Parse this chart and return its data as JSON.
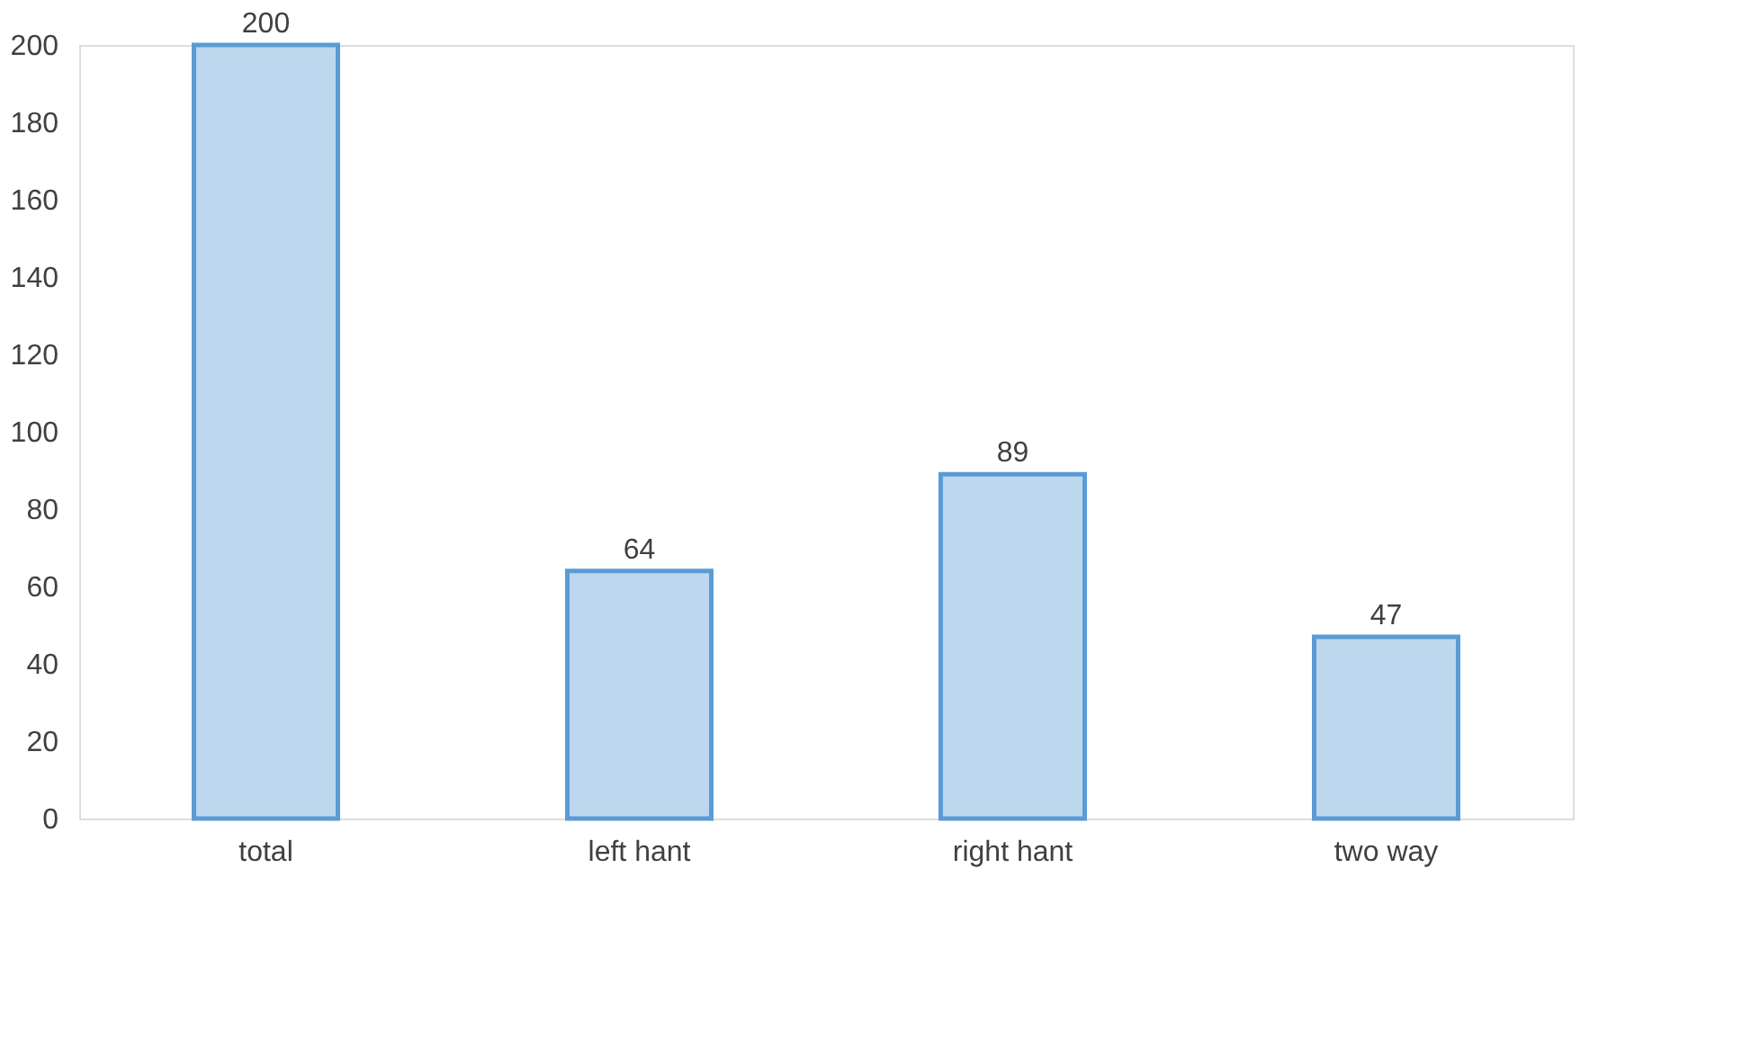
{
  "chart_data": {
    "type": "bar",
    "categories": [
      "total",
      "left hant",
      "right hant",
      "two way"
    ],
    "values": [
      200,
      64,
      89,
      47
    ],
    "color": "#bdd7ee",
    "ylim": [
      0,
      200
    ],
    "yticks": [
      0,
      20,
      40,
      60,
      80,
      100,
      120,
      140,
      160,
      180,
      200
    ],
    "grid": false,
    "data_labels": true
  }
}
